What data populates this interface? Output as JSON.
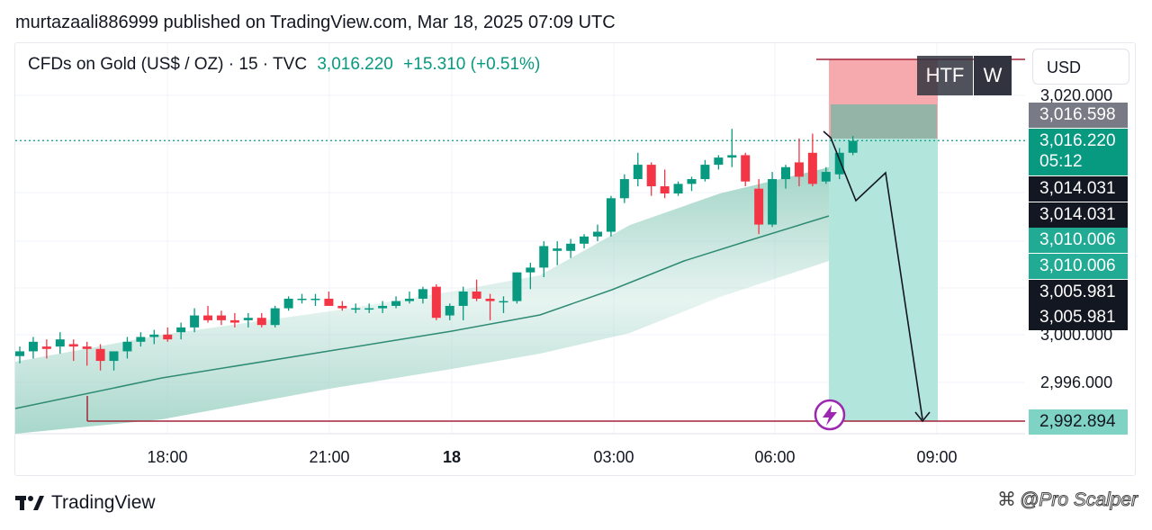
{
  "publish_line": "murtazaali886999 published on TradingView.com, Mar 18, 2025 07:09 UTC",
  "legend": {
    "symbol": "CFDs on Gold (US$ / OZ) · 15 · TVC",
    "price": "3,016.220",
    "change": "+15.310 (+0.51%)"
  },
  "currency": "USD",
  "timeframe_buttons": [
    "HTF",
    "W"
  ],
  "price_tags": {
    "tag_a": "3,016.598",
    "last_price": "3,016.220",
    "countdown": "05:12",
    "tag_b1": "3,014.031",
    "tag_b2": "3,014.031",
    "tag_c1": "3,010.006",
    "tag_c2": "3,010.006",
    "tag_d1": "3,005.981",
    "tag_d2": "3,005.981",
    "target": "2,992.894"
  },
  "footer": {
    "brand": "TradingView"
  },
  "watermark": "@Pro Scalper",
  "colors": {
    "up": "#089981",
    "down": "#f23645",
    "band": "#9fd3c5",
    "stop_zone": "#f7a5aa",
    "target_zone": "#b2e5dc",
    "target_line": "#a3243a"
  },
  "chart_data": {
    "type": "candlestick",
    "y_ticks": [
      "3,020.000",
      "3,000.000",
      "2,996.000"
    ],
    "x_ticks": [
      "18:00",
      "21:00",
      "18",
      "03:00",
      "06:00",
      "09:00"
    ],
    "candles": [
      [
        2998.2,
        2999.0,
        2997.6,
        2998.6
      ],
      [
        2998.6,
        2999.8,
        2998.0,
        2999.4
      ],
      [
        2999.0,
        2999.6,
        2998.0,
        2998.8
      ],
      [
        2999.0,
        3000.2,
        2998.4,
        2999.6
      ],
      [
        2999.2,
        2999.6,
        2997.8,
        2999.0
      ],
      [
        2999.0,
        2999.4,
        2997.4,
        2998.8
      ],
      [
        2998.8,
        2999.2,
        2997.0,
        2997.8
      ],
      [
        2997.8,
        2998.6,
        2997.0,
        2998.6
      ],
      [
        2998.6,
        2999.8,
        2998.0,
        2999.4
      ],
      [
        2999.4,
        3000.2,
        2999.0,
        2999.8
      ],
      [
        2999.8,
        3000.4,
        2999.2,
        3000.0
      ],
      [
        3000.0,
        3000.6,
        2999.4,
        2999.6
      ],
      [
        3000.2,
        3001.0,
        2999.6,
        3000.6
      ],
      [
        3000.6,
        3002.2,
        3000.2,
        3001.6
      ],
      [
        3001.6,
        3002.4,
        3001.0,
        3001.2
      ],
      [
        3001.6,
        3002.0,
        3000.8,
        3001.2
      ],
      [
        3001.2,
        3001.8,
        3000.6,
        3001.0
      ],
      [
        3001.2,
        3001.8,
        3000.6,
        3001.4
      ],
      [
        3001.4,
        3001.8,
        3000.6,
        3000.8
      ],
      [
        3000.8,
        3002.4,
        3000.6,
        3002.2
      ],
      [
        3002.2,
        3003.2,
        3002.0,
        3003.0
      ],
      [
        3003.0,
        3003.4,
        3002.6,
        3003.0
      ],
      [
        3003.0,
        3003.4,
        3002.4,
        3003.0
      ],
      [
        3003.0,
        3003.6,
        3002.4,
        3002.4
      ],
      [
        3002.4,
        3002.8,
        3002.0,
        3002.2
      ],
      [
        3002.2,
        3002.6,
        3001.8,
        3002.2
      ],
      [
        3002.2,
        3002.6,
        3001.8,
        3002.2
      ],
      [
        3002.2,
        3002.8,
        3001.8,
        3002.4
      ],
      [
        3002.4,
        3003.2,
        3002.2,
        3002.8
      ],
      [
        3002.8,
        3003.6,
        3002.6,
        3003.0
      ],
      [
        3003.0,
        3004.0,
        3002.6,
        3003.8
      ],
      [
        3004.0,
        3004.2,
        3001.2,
        3001.4
      ],
      [
        3001.6,
        3002.6,
        3001.2,
        3002.4
      ],
      [
        3002.4,
        3004.0,
        3001.2,
        3003.6
      ],
      [
        3003.6,
        3004.6,
        3002.8,
        3003.0
      ],
      [
        3003.0,
        3003.4,
        3001.2,
        3002.8
      ],
      [
        3002.8,
        3003.2,
        3001.8,
        3002.8
      ],
      [
        3002.8,
        3005.2,
        3002.6,
        3005.2
      ],
      [
        3005.2,
        3006.0,
        3003.8,
        3005.6
      ],
      [
        3005.6,
        3007.8,
        3004.8,
        3007.4
      ],
      [
        3007.0,
        3007.8,
        3005.8,
        3007.2
      ],
      [
        3007.0,
        3008.0,
        3006.4,
        3007.6
      ],
      [
        3007.6,
        3008.4,
        3007.2,
        3008.2
      ],
      [
        3008.2,
        3009.2,
        3007.8,
        3008.6
      ],
      [
        3008.6,
        3011.6,
        3008.2,
        3011.4
      ],
      [
        3011.4,
        3013.4,
        3011.0,
        3013.0
      ],
      [
        3013.0,
        3015.2,
        3012.4,
        3014.2
      ],
      [
        3014.2,
        3014.4,
        3011.6,
        3012.4
      ],
      [
        3012.4,
        3013.8,
        3011.4,
        3011.8
      ],
      [
        3011.8,
        3012.8,
        3011.6,
        3012.6
      ],
      [
        3012.6,
        3013.2,
        3012.0,
        3013.0
      ],
      [
        3013.0,
        3014.6,
        3012.8,
        3014.2
      ],
      [
        3014.2,
        3015.0,
        3013.8,
        3014.8
      ],
      [
        3014.8,
        3017.2,
        3014.0,
        3015.0
      ],
      [
        3015.0,
        3015.2,
        3012.4,
        3012.8
      ],
      [
        3012.2,
        3013.0,
        3008.4,
        3009.2
      ],
      [
        3009.2,
        3013.6,
        3009.0,
        3013.0
      ],
      [
        3013.0,
        3014.2,
        3012.2,
        3014.0
      ],
      [
        3014.4,
        3016.4,
        3012.4,
        3013.2
      ],
      [
        3015.2,
        3016.8,
        3012.4,
        3012.6
      ],
      [
        3012.8,
        3014.0,
        3012.6,
        3013.6
      ],
      [
        3013.4,
        3015.6,
        3013.0,
        3015.2
      ],
      [
        3015.2,
        3016.6,
        3015.0,
        3016.2
      ]
    ],
    "annotations": {
      "stop_loss_zone_top": 3021.2,
      "stop_loss_zone_bottom": 3016.6,
      "target_level": 2992.894,
      "projection_path": [
        [
          3016.4,
          3017.0
        ],
        [
          3016.8,
          3012.0
        ],
        [
          3017.2,
          3014.0
        ],
        [
          3017.6,
          2992.9
        ]
      ]
    }
  }
}
